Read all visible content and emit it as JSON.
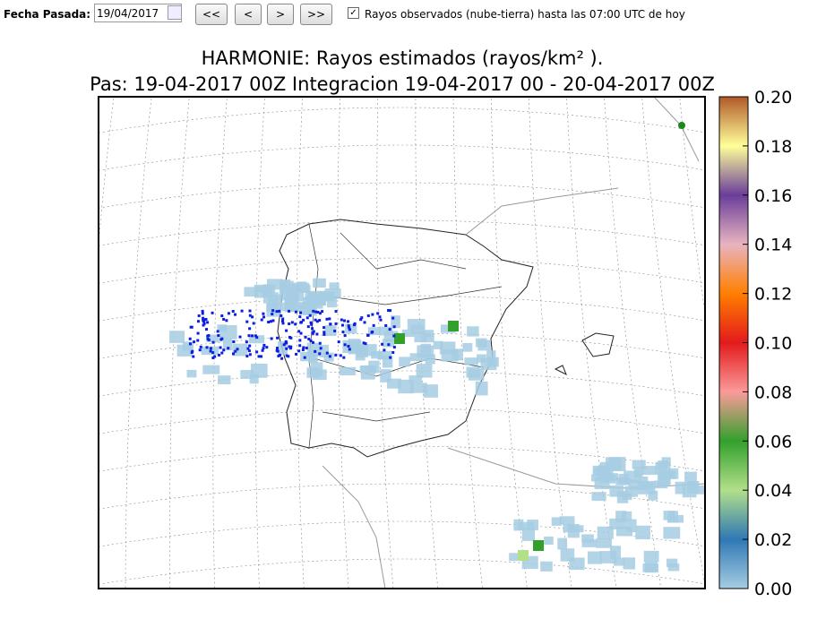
{
  "toolbar": {
    "date_label": "Fecha Pasada:",
    "date_value": "19/04/2017",
    "buttons": [
      "<<",
      "<",
      ">",
      ">>"
    ],
    "checkbox_label": "Rayos observados (nube-tierra) hasta las 07:00 UTC de hoy"
  },
  "map": {
    "title_line1": "HARMONIE: Rayos estimados  (rayos/km² ).",
    "title_line2": "Pas: 19-04-2017 00Z Integracion 19-04-2017 00 - 20-04-2017 00Z"
  },
  "colorbar": {
    "lim": [
      0,
      0.2
    ],
    "ticks": [
      {
        "value": 0,
        "label": "0.00"
      },
      {
        "value": 0.02,
        "label": "0.02"
      },
      {
        "value": 0.04,
        "label": "0.04"
      },
      {
        "value": 0.06,
        "label": "0.06"
      },
      {
        "value": 0.08,
        "label": "0.08"
      },
      {
        "value": 0.1,
        "label": "0.10"
      },
      {
        "value": 0.12,
        "label": "0.12"
      },
      {
        "value": 0.14,
        "label": "0.14"
      },
      {
        "value": 0.16,
        "label": "0.16"
      },
      {
        "value": 0.18,
        "label": "0.18"
      },
      {
        "value": 0.2,
        "label": "0.20"
      }
    ]
  }
}
